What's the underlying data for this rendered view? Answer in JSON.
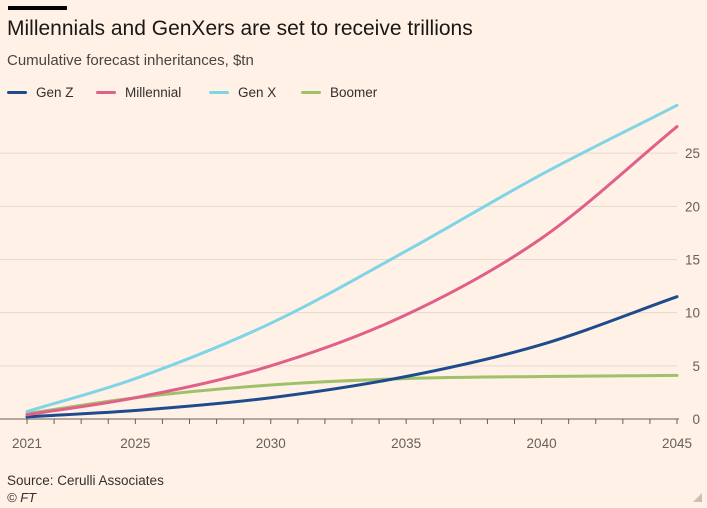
{
  "header": {
    "title": "Millennials and GenXers are set to receive trillions",
    "subtitle": "Cumulative forecast inheritances, $tn"
  },
  "footer": {
    "source": "Source: Cerulli Associates",
    "copyright": "© FT"
  },
  "chart_data": {
    "type": "line",
    "title": "Millennials and GenXers are set to receive trillions",
    "subtitle": "Cumulative forecast inheritances, $tn",
    "xlabel": "",
    "ylabel": "",
    "xlim": [
      2021,
      2045
    ],
    "ylim": [
      0,
      30
    ],
    "x_ticks": [
      "2021",
      "2025",
      "2030",
      "2035",
      "2040",
      "2045"
    ],
    "y_ticks": [
      "0",
      "5",
      "10",
      "15",
      "20",
      "25"
    ],
    "y_axis_side": "right",
    "grid": "horizontal",
    "legend_position": "top-left",
    "x": [
      2021,
      2025,
      2030,
      2035,
      2040,
      2045
    ],
    "series": [
      {
        "name": "Gen Z",
        "color": "#1e4b8e",
        "values": [
          0.2,
          0.8,
          2.0,
          4.0,
          7.0,
          11.5
        ]
      },
      {
        "name": "Millennial",
        "color": "#e0608a",
        "values": [
          0.4,
          2.0,
          5.0,
          9.8,
          17.0,
          27.5
        ]
      },
      {
        "name": "Gen X",
        "color": "#7fd4e6",
        "values": [
          0.7,
          3.8,
          9.0,
          15.8,
          23.0,
          29.5
        ]
      },
      {
        "name": "Boomer",
        "color": "#9fc16a",
        "values": [
          0.5,
          2.0,
          3.2,
          3.8,
          4.0,
          4.1
        ]
      }
    ]
  }
}
